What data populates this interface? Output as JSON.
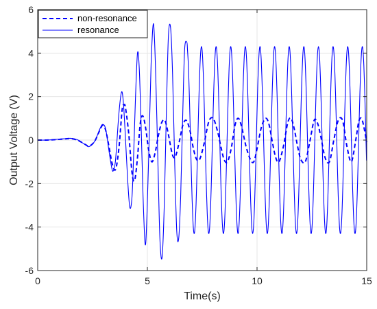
{
  "chart_data": {
    "type": "line",
    "title": "",
    "xlabel": "Time(s)",
    "ylabel": "Output Voltage (V)",
    "xlim": [
      0,
      15
    ],
    "ylim": [
      -6,
      6
    ],
    "xticks": [
      0,
      5,
      10,
      15
    ],
    "yticks": [
      -6,
      -4,
      -2,
      0,
      2,
      4,
      6
    ],
    "grid": true,
    "legend_position": "top-left",
    "series": [
      {
        "name": "non-resonance",
        "style": "dashed",
        "color": "#0000ff",
        "x": [
          0.0,
          0.4,
          0.8,
          1.2,
          1.5,
          1.8,
          2.0,
          2.2,
          2.35,
          2.6,
          2.85,
          2.97,
          3.1,
          3.25,
          3.4,
          3.55,
          3.7,
          3.85,
          3.93,
          4.0,
          4.15,
          4.3,
          4.42,
          4.55,
          4.68,
          4.8,
          4.93,
          5.05,
          5.2,
          5.35,
          5.5,
          5.65,
          5.8,
          5.95,
          6.1,
          6.2,
          6.3,
          6.45,
          6.62,
          6.78,
          6.95,
          7.1,
          7.25,
          7.4,
          7.6,
          7.8,
          8.0,
          8.2,
          8.35,
          8.5,
          8.65,
          8.82,
          9.0,
          9.15,
          9.3,
          9.5,
          9.7,
          9.85,
          10.0,
          10.2,
          10.4,
          10.55,
          10.7,
          10.85,
          11.0,
          11.2,
          11.4,
          11.55,
          11.7,
          11.85,
          12.0,
          12.2,
          12.4,
          12.6,
          12.75,
          12.9,
          13.1,
          13.3,
          13.5,
          13.7,
          13.9,
          14.1,
          14.3,
          14.5,
          14.65,
          14.8,
          15.0
        ],
        "y": [
          0.0,
          0.0,
          0.02,
          0.05,
          0.07,
          0.0,
          -0.1,
          -0.22,
          -0.28,
          -0.05,
          0.5,
          0.68,
          0.45,
          -0.3,
          -1.1,
          -1.35,
          -0.4,
          1.4,
          1.6,
          1.5,
          0.3,
          -1.5,
          -1.85,
          -0.8,
          0.8,
          1.1,
          0.5,
          -0.4,
          -1.0,
          -0.6,
          0.2,
          0.8,
          0.9,
          0.3,
          -0.5,
          -0.8,
          -0.7,
          -0.1,
          0.7,
          0.9,
          0.4,
          -0.4,
          -0.9,
          -0.85,
          -0.1,
          0.85,
          1.0,
          0.4,
          -0.3,
          -0.9,
          -1.0,
          -0.4,
          0.7,
          1.0,
          0.6,
          -0.3,
          -0.9,
          -1.0,
          -0.4,
          0.6,
          1.0,
          0.7,
          -0.1,
          -0.8,
          -1.0,
          -0.3,
          0.8,
          1.0,
          0.5,
          -0.3,
          -0.9,
          -1.0,
          -0.1,
          0.9,
          0.8,
          0.2,
          -0.8,
          -1.0,
          0.0,
          0.9,
          0.9,
          -0.3,
          -1.0,
          0.0,
          0.9,
          0.9,
          -0.1
        ]
      },
      {
        "name": "resonance",
        "style": "solid",
        "color": "#0000ff",
        "x": [
          0.0,
          0.4,
          0.8,
          1.2,
          1.5,
          1.8,
          2.0,
          2.2,
          2.35,
          2.6,
          2.85,
          2.97,
          3.1,
          3.25,
          3.38,
          3.45,
          3.55,
          3.7,
          3.82,
          3.9,
          3.98,
          4.1,
          4.2,
          4.3,
          4.38,
          4.46,
          4.55,
          4.63,
          4.72,
          4.8,
          4.9,
          4.98,
          5.08,
          5.17,
          5.28,
          5.38,
          5.48,
          5.57,
          5.67,
          5.77,
          5.87,
          5.96,
          6.06,
          6.15,
          6.25,
          6.34,
          6.43,
          6.52,
          6.62,
          6.7,
          6.8
        ],
        "y": [
          0.0,
          0.0,
          0.03,
          0.06,
          0.08,
          0.02,
          -0.1,
          -0.23,
          -0.3,
          -0.05,
          0.55,
          0.72,
          0.5,
          -0.5,
          -1.3,
          -1.4,
          -0.9,
          1.2,
          2.2,
          1.8,
          0.5,
          -1.8,
          -3.1,
          -2.6,
          -0.5,
          2.0,
          4.0,
          3.3,
          0.5,
          -2.5,
          -4.8,
          -3.5,
          0.0,
          3.5,
          5.35,
          3.0,
          -1.0,
          -4.5,
          -5.4,
          -3.0,
          1.5,
          4.8,
          5.15,
          3.0,
          -1.2,
          -4.2,
          -4.5,
          -2.5,
          1.5,
          4.2,
          4.5
        ],
        "steady_state": {
          "amplitude": 4.3,
          "frequency_hz": 1.5,
          "from_x": 6.8,
          "to_x": 15.0
        }
      }
    ]
  }
}
